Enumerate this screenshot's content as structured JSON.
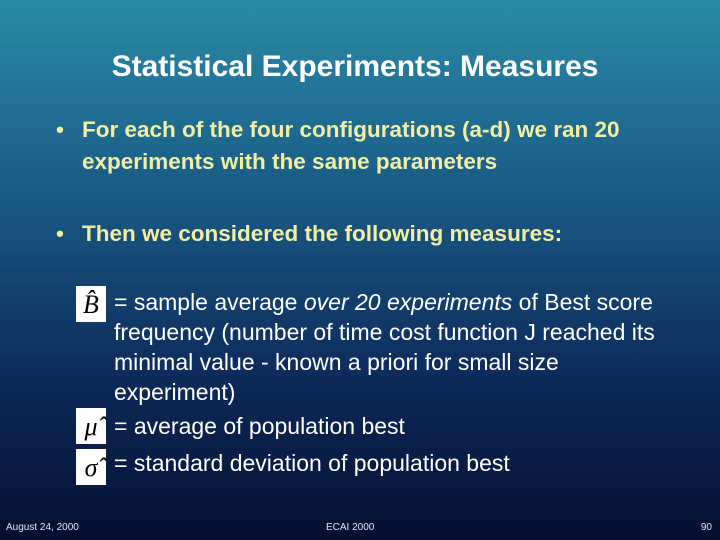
{
  "title": "Statistical Experiments: Measures",
  "bullets": [
    "For each of the four configurations (a-d) we ran 20 experiments with the same parameters",
    "Then we considered the following measures:"
  ],
  "measures": [
    {
      "symbol": "B̂",
      "parts": [
        "= sample average ",
        "over 20 experiments",
        " of Best score frequency (number of time cost function J reached its minimal value - known a priori for small size experiment)"
      ]
    },
    {
      "symbol": "μ̂",
      "parts": [
        "= average of population best"
      ]
    },
    {
      "symbol": "σ̂",
      "parts": [
        "= standard deviation of population best"
      ]
    }
  ],
  "footer": {
    "date": "August 24, 2000",
    "event": "ECAI 2000",
    "page": "90"
  }
}
